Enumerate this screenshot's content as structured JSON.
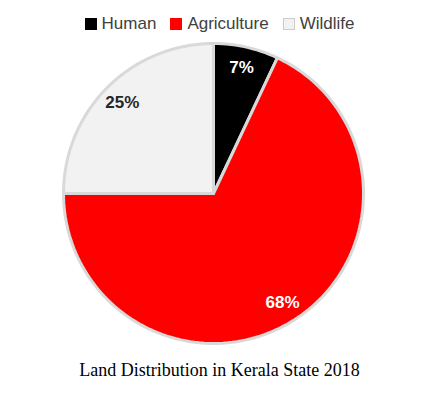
{
  "chart_data": {
    "type": "pie",
    "title": "Land Distribution in Kerala State 2018",
    "categories": [
      "Human",
      "Agriculture",
      "Wildlife"
    ],
    "values": [
      7,
      68,
      25
    ],
    "value_labels": [
      "7%",
      "68%",
      "25%"
    ],
    "colors": [
      "#000000",
      "#ff0000",
      "#f2f2f2"
    ],
    "legend": "top",
    "data_labels": true
  }
}
